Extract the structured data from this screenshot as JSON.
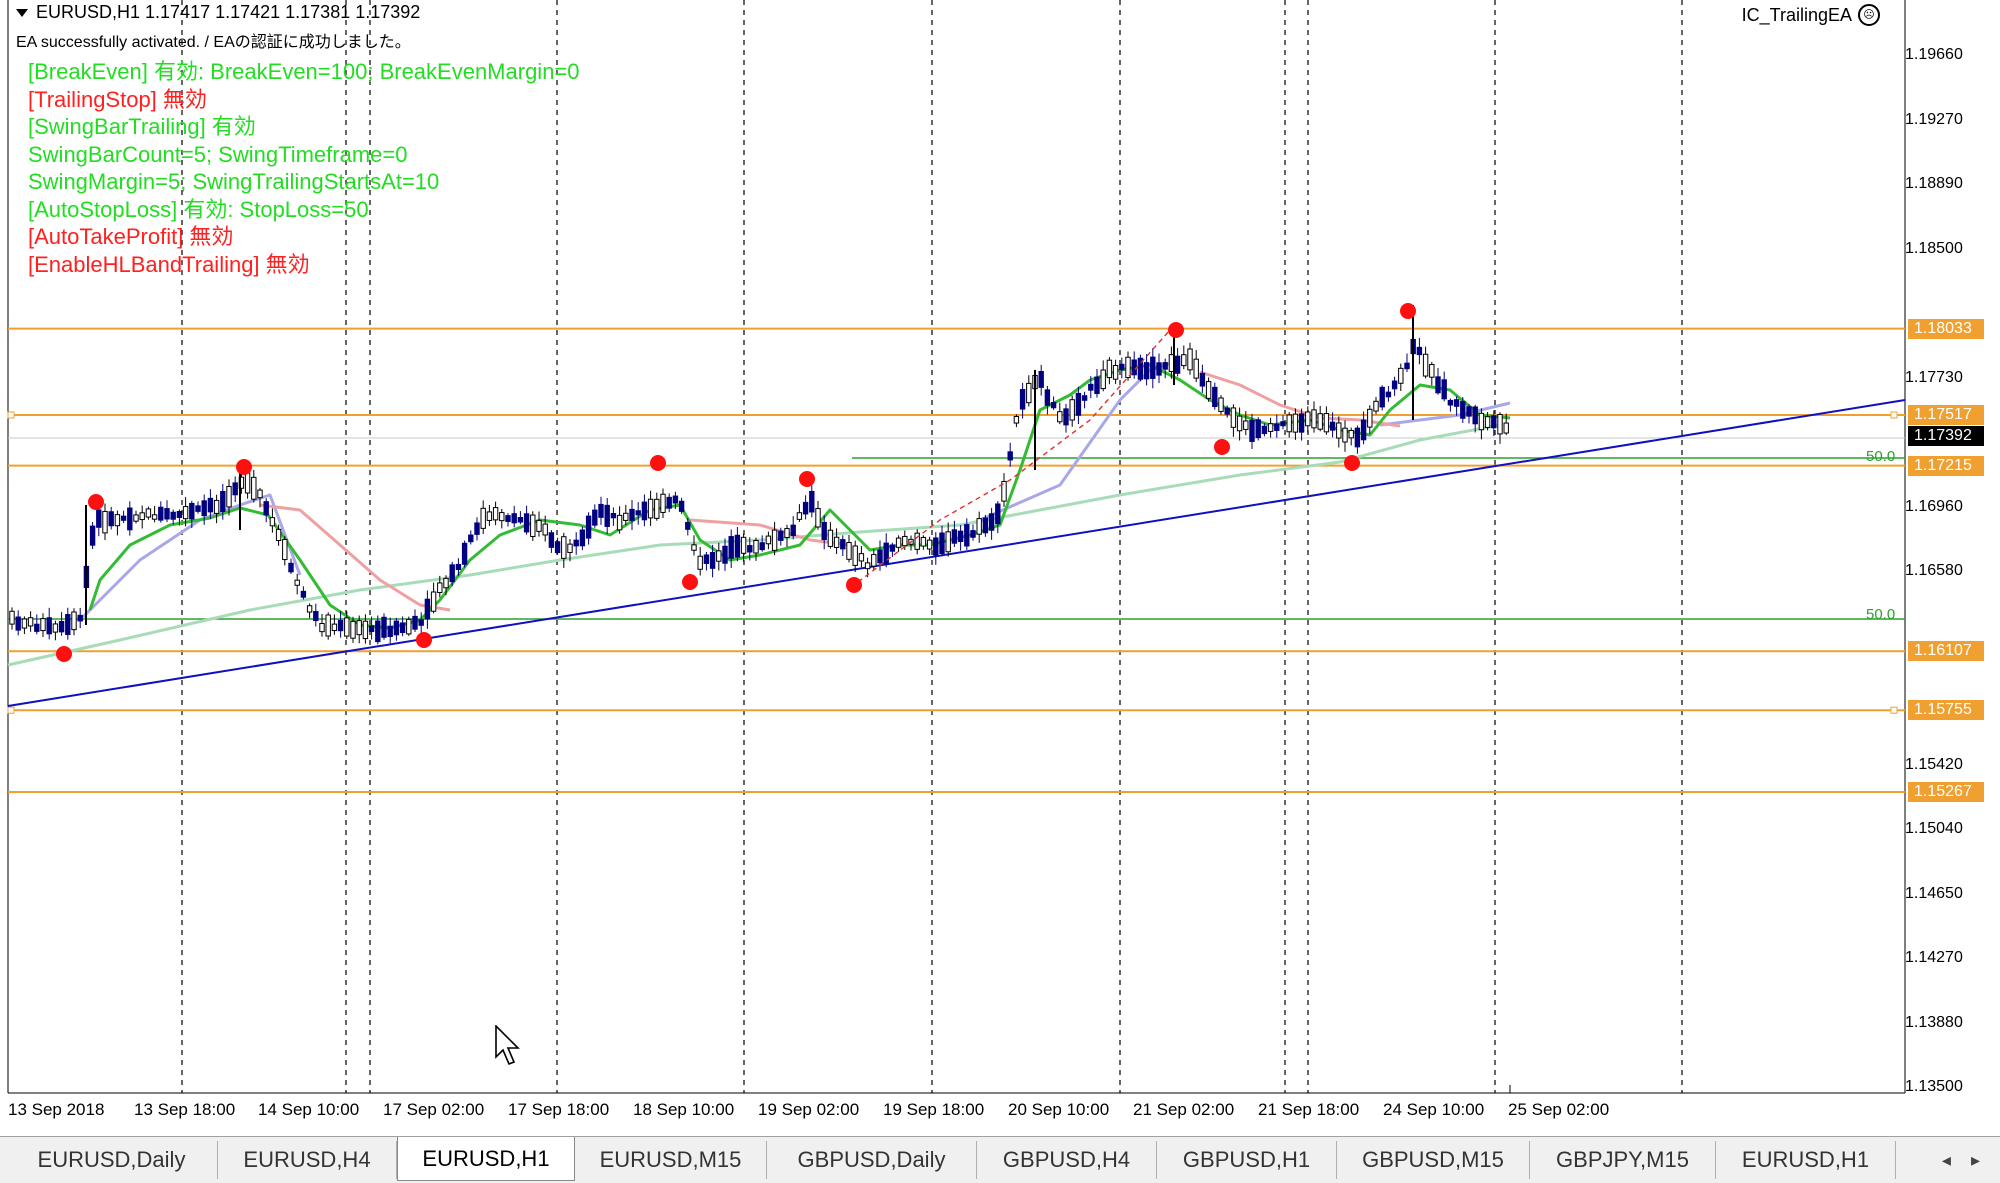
{
  "header": {
    "symbol_line": "EURUSD,H1  1.17417 1.17421 1.17381 1.17392",
    "ea_status": "EA successfully activated. / EAの認証に成功しました。",
    "ea_name": "IC_TrailingEA",
    "ea_icon": "sad-face-icon"
  },
  "info_lines": [
    {
      "text": "[BreakEven] 有効: BreakEven=100; BreakEvenMargin=0",
      "color": "#22dd22"
    },
    {
      "text": "[TrailingStop] 無効",
      "color": "#ff2020"
    },
    {
      "text": "[SwingBarTrailing] 有効",
      "color": "#22dd22"
    },
    {
      "text": "SwingBarCount=5; SwingTimeframe=0",
      "color": "#22dd22"
    },
    {
      "text": "SwingMargin=5; SwingTrailingStartsAt=10",
      "color": "#22dd22"
    },
    {
      "text": "[AutoStopLoss] 有効: StopLoss=50",
      "color": "#22dd22"
    },
    {
      "text": "[AutoTakeProfit] 無効",
      "color": "#ff2020"
    },
    {
      "text": "[EnableHLBandTrailing] 無効",
      "color": "#ff2020"
    }
  ],
  "price_axis": {
    "range": [
      1.135,
      1.2
    ],
    "labels": [
      "1.19660",
      "1.19270",
      "1.18890",
      "1.18500",
      "1.17730",
      "1.16960",
      "1.16580",
      "1.15420",
      "1.15040",
      "1.14650",
      "1.14270",
      "1.13880",
      "1.13500"
    ]
  },
  "price_tags": [
    {
      "price": "1.18033",
      "color": "#f0a030"
    },
    {
      "price": "1.17517",
      "color": "#f0a030"
    },
    {
      "price": "1.17392",
      "color": "#000000"
    },
    {
      "price": "1.17215",
      "color": "#f0a030"
    },
    {
      "price": "1.16107",
      "color": "#f0a030"
    },
    {
      "price": "1.15755",
      "color": "#f0a030"
    },
    {
      "price": "1.15267",
      "color": "#f0a030"
    }
  ],
  "fib_labels": [
    "50.0",
    "50.0"
  ],
  "time_axis": [
    "13 Sep 2018",
    "13 Sep 18:00",
    "14 Sep 10:00",
    "17 Sep 02:00",
    "17 Sep 18:00",
    "18 Sep 10:00",
    "19 Sep 02:00",
    "19 Sep 18:00",
    "20 Sep 10:00",
    "21 Sep 02:00",
    "21 Sep 18:00",
    "24 Sep 10:00",
    "25 Sep 02:00"
  ],
  "tabs": [
    {
      "label": "EURUSD,Daily",
      "active": false
    },
    {
      "label": "EURUSD,H4",
      "active": false
    },
    {
      "label": "EURUSD,H1",
      "active": true
    },
    {
      "label": "EURUSD,M15",
      "active": false
    },
    {
      "label": "GBPUSD,Daily",
      "active": false
    },
    {
      "label": "GBPUSD,H4",
      "active": false
    },
    {
      "label": "GBPUSD,H1",
      "active": false
    },
    {
      "label": "GBPUSD,M15",
      "active": false
    },
    {
      "label": "GBPJPY,M15",
      "active": false
    },
    {
      "label": "EURUSD,H1",
      "active": false
    }
  ],
  "tab_scroll": {
    "left": "◂",
    "right": "▸"
  },
  "colors": {
    "level_line": "#f0a030",
    "fib_line": "#2ca02c",
    "trend_line": "#1010c0",
    "ma_fast": "#33bb33",
    "ma_slow": "#a8a8e8",
    "ma_long": "#a8dcb8",
    "ma_red": "#f0a0a0",
    "swing_point": "#ff1010",
    "bull_candle": "#000000",
    "bear_candle": "#000080"
  },
  "chart_data": {
    "type": "candlestick",
    "symbol": "EURUSD",
    "timeframe": "H1",
    "ylim": [
      1.135,
      1.2
    ],
    "levels": [
      1.18033,
      1.17517,
      1.17215,
      1.16107,
      1.15755,
      1.15267
    ],
    "current_price": 1.17392,
    "swing_points": [
      {
        "type": "low",
        "price": 1.161
      },
      {
        "type": "high",
        "price": 1.1705
      },
      {
        "type": "high",
        "price": 1.1727
      },
      {
        "type": "low",
        "price": 1.1617
      },
      {
        "type": "high",
        "price": 1.173
      },
      {
        "type": "low",
        "price": 1.1658
      },
      {
        "type": "high",
        "price": 1.1718
      },
      {
        "type": "low",
        "price": 1.1656
      },
      {
        "type": "high",
        "price": 1.1808
      },
      {
        "type": "low",
        "price": 1.174
      },
      {
        "type": "high",
        "price": 1.1818
      },
      {
        "type": "low",
        "price": 1.1731
      }
    ]
  }
}
